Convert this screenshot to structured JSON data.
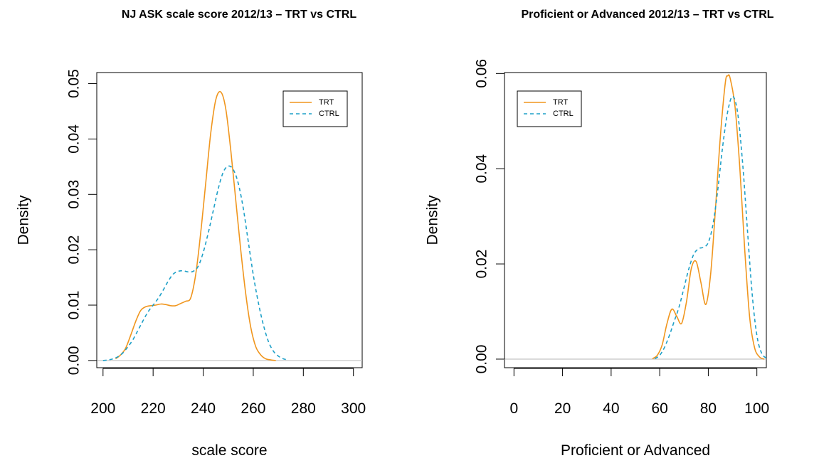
{
  "chart_data": [
    {
      "type": "line",
      "title": "NJ ASK scale score 2012/13 – TRT vs CTRL",
      "xlabel": "scale score",
      "ylabel": "Density",
      "xlim": [
        197.5,
        303.5
      ],
      "ylim": [
        -0.0013,
        0.052
      ],
      "x_ticks": [
        200,
        220,
        240,
        260,
        280,
        300
      ],
      "y_ticks": [
        0.0,
        0.01,
        0.02,
        0.03,
        0.04,
        0.05
      ],
      "y_tick_labels": [
        "0.00",
        "0.01",
        "0.02",
        "0.03",
        "0.04",
        "0.05"
      ],
      "baseline": 0,
      "grid": false,
      "legend_position": "top-right",
      "series": [
        {
          "name": "TRT",
          "color": "#F0961E",
          "dash": "solid",
          "x": [
            205,
            207,
            209,
            211,
            213,
            215,
            217,
            219,
            221,
            223,
            225,
            227,
            229,
            231,
            233,
            235,
            237,
            239,
            241,
            243,
            245,
            247,
            249,
            251,
            253,
            255,
            257,
            259,
            261,
            263,
            265,
            267,
            269
          ],
          "y": [
            0.0003,
            0.001,
            0.0022,
            0.0045,
            0.007,
            0.009,
            0.0097,
            0.0099,
            0.01,
            0.0102,
            0.0101,
            0.0099,
            0.0099,
            0.0103,
            0.0107,
            0.0113,
            0.0155,
            0.023,
            0.032,
            0.041,
            0.047,
            0.0485,
            0.0455,
            0.038,
            0.029,
            0.02,
            0.012,
            0.006,
            0.0025,
            0.001,
            0.0003,
            0.0001,
            0.0
          ]
        },
        {
          "name": "CTRL",
          "color": "#1EA0C8",
          "dash": "dashed",
          "x": [
            200,
            202,
            204,
            206,
            208,
            210,
            212,
            214,
            216,
            218,
            220,
            222,
            224,
            226,
            228,
            230,
            232,
            234,
            236,
            238,
            240,
            242,
            244,
            246,
            248,
            250,
            252,
            254,
            256,
            258,
            260,
            262,
            264,
            266,
            268,
            270,
            272,
            274
          ],
          "y": [
            0.0,
            0.0001,
            0.0003,
            0.0007,
            0.0014,
            0.0025,
            0.0038,
            0.0055,
            0.0072,
            0.0088,
            0.01,
            0.0112,
            0.0127,
            0.0143,
            0.0156,
            0.0161,
            0.0162,
            0.016,
            0.0161,
            0.017,
            0.0195,
            0.023,
            0.027,
            0.031,
            0.034,
            0.0351,
            0.0345,
            0.032,
            0.0275,
            0.0215,
            0.0155,
            0.0105,
            0.0065,
            0.0035,
            0.0017,
            0.0008,
            0.0003,
            0.0001
          ]
        }
      ]
    },
    {
      "type": "line",
      "title": "Proficient or Advanced 2012/13 – TRT vs CTRL",
      "xlabel": "Proficient or Advanced",
      "ylabel": "Density",
      "xlim": [
        -3.9,
        103.9
      ],
      "ylim": [
        -0.0018,
        0.0602
      ],
      "x_ticks": [
        0,
        20,
        40,
        60,
        80,
        100
      ],
      "y_ticks": [
        0.0,
        0.02,
        0.04,
        0.06
      ],
      "y_tick_labels": [
        "0.00",
        "0.02",
        "0.04",
        "0.06"
      ],
      "baseline": 0,
      "grid": false,
      "legend_position": "top-left",
      "series": [
        {
          "name": "TRT",
          "color": "#F0961E",
          "dash": "solid",
          "x": [
            57,
            59,
            61,
            63,
            65,
            67,
            69,
            71,
            73,
            75,
            77,
            79,
            81,
            83,
            85,
            87,
            88,
            89,
            91,
            93,
            95,
            97,
            99,
            101,
            103
          ],
          "y": [
            0.0001,
            0.0008,
            0.003,
            0.0075,
            0.0105,
            0.009,
            0.0075,
            0.012,
            0.019,
            0.0205,
            0.016,
            0.0115,
            0.018,
            0.032,
            0.047,
            0.058,
            0.0595,
            0.059,
            0.053,
            0.04,
            0.023,
            0.009,
            0.0025,
            0.0005,
            0.0
          ]
        },
        {
          "name": "CTRL",
          "color": "#1EA0C8",
          "dash": "dashed",
          "x": [
            58,
            60,
            62,
            64,
            66,
            68,
            70,
            72,
            74,
            76,
            78,
            80,
            82,
            84,
            86,
            88,
            90,
            92,
            94,
            96,
            98,
            100,
            102,
            104
          ],
          "y": [
            0.0001,
            0.0008,
            0.0025,
            0.005,
            0.008,
            0.011,
            0.015,
            0.019,
            0.022,
            0.0232,
            0.0235,
            0.0245,
            0.0285,
            0.036,
            0.045,
            0.052,
            0.0552,
            0.052,
            0.042,
            0.028,
            0.014,
            0.005,
            0.0012,
            0.0002
          ]
        }
      ]
    }
  ]
}
